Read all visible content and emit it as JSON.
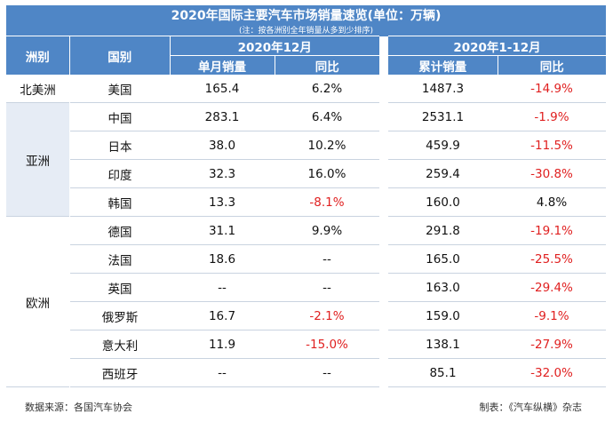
{
  "title": "2020年国际主要汽车市场销量速览(单位：万辆)",
  "note": "(注：按各洲别全年销量从多到少排序)",
  "headers": {
    "continent": "洲别",
    "country": "国别",
    "period_month": "2020年12月",
    "period_year": "2020年1-12月",
    "month_sales": "单月销量",
    "yoy": "同比",
    "cum_sales": "累计销量"
  },
  "footer": {
    "source": "数据来源：各国汽车协会",
    "made_by": "制表：《汽车纵横》杂志"
  },
  "colors": {
    "header_bg": "#4f86c6",
    "negative": "#e02020",
    "shade": "#e6ecf5"
  },
  "chart_data": {
    "type": "table",
    "title": "2020年国际主要汽车市场销量速览(单位：万辆)",
    "columns": [
      "洲别",
      "国别",
      "单月销量",
      "同比",
      "累计销量",
      "同比"
    ],
    "groups": [
      {
        "continent": "北美洲",
        "rows": [
          {
            "country": "美国",
            "month": "165.4",
            "month_yoy": "6.2%",
            "cum": "1487.3",
            "cum_yoy": "-14.9%"
          }
        ]
      },
      {
        "continent": "亚洲",
        "rows": [
          {
            "country": "中国",
            "month": "283.1",
            "month_yoy": "6.4%",
            "cum": "2531.1",
            "cum_yoy": "-1.9%"
          },
          {
            "country": "日本",
            "month": "38.0",
            "month_yoy": "10.2%",
            "cum": "459.9",
            "cum_yoy": "-11.5%"
          },
          {
            "country": "印度",
            "month": "32.3",
            "month_yoy": "16.0%",
            "cum": "259.4",
            "cum_yoy": "-30.8%"
          },
          {
            "country": "韩国",
            "month": "13.3",
            "month_yoy": "-8.1%",
            "cum": "160.0",
            "cum_yoy": "4.8%"
          }
        ]
      },
      {
        "continent": "欧洲",
        "rows": [
          {
            "country": "德国",
            "month": "31.1",
            "month_yoy": "9.9%",
            "cum": "291.8",
            "cum_yoy": "-19.1%"
          },
          {
            "country": "法国",
            "month": "18.6",
            "month_yoy": "--",
            "cum": "165.0",
            "cum_yoy": "-25.5%"
          },
          {
            "country": "英国",
            "month": "--",
            "month_yoy": "--",
            "cum": "163.0",
            "cum_yoy": "-29.4%"
          },
          {
            "country": "俄罗斯",
            "month": "16.7",
            "month_yoy": "-2.1%",
            "cum": "159.0",
            "cum_yoy": "-9.1%"
          },
          {
            "country": "意大利",
            "month": "11.9",
            "month_yoy": "-15.0%",
            "cum": "138.1",
            "cum_yoy": "-27.9%"
          },
          {
            "country": "西班牙",
            "month": "--",
            "month_yoy": "--",
            "cum": "85.1",
            "cum_yoy": "-32.0%"
          }
        ]
      }
    ]
  }
}
